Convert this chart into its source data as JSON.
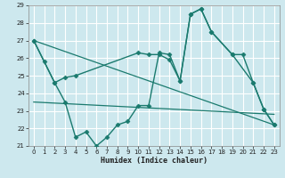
{
  "xlabel": "Humidex (Indice chaleur)",
  "bg_color": "#cde8ee",
  "grid_color": "#ffffff",
  "line_color": "#1a7a6e",
  "xlim": [
    -0.5,
    23.5
  ],
  "ylim": [
    21,
    29
  ],
  "yticks": [
    21,
    22,
    23,
    24,
    25,
    26,
    27,
    28,
    29
  ],
  "xticks": [
    0,
    1,
    2,
    3,
    4,
    5,
    6,
    7,
    8,
    9,
    10,
    11,
    12,
    13,
    14,
    15,
    16,
    17,
    18,
    19,
    20,
    21,
    22,
    23
  ],
  "series": [
    {
      "x": [
        0,
        1,
        2,
        3,
        4,
        5,
        6,
        7,
        8,
        9,
        10,
        11,
        12,
        13,
        14,
        15,
        16,
        17,
        19,
        20,
        21,
        22,
        23
      ],
      "y": [
        27,
        25.8,
        24.6,
        23.5,
        21.5,
        21.8,
        21.0,
        21.5,
        22.2,
        22.4,
        23.3,
        23.3,
        26.3,
        26.2,
        24.7,
        28.5,
        28.8,
        27.5,
        26.2,
        26.2,
        24.6,
        23.1,
        22.2
      ],
      "marker": "D",
      "markersize": 2.5,
      "linewidth": 1.0
    },
    {
      "x": [
        0,
        2,
        3,
        4,
        10,
        11,
        12,
        13,
        14,
        15,
        16,
        17,
        19,
        21,
        22,
        23
      ],
      "y": [
        27,
        24.6,
        24.9,
        25.0,
        26.3,
        26.2,
        26.2,
        25.9,
        24.7,
        28.5,
        28.8,
        27.5,
        26.2,
        24.6,
        23.1,
        22.2
      ],
      "marker": "D",
      "markersize": 2.5,
      "linewidth": 1.0
    },
    {
      "x": [
        0,
        23
      ],
      "y": [
        27,
        22.2
      ],
      "marker": null,
      "markersize": 0,
      "linewidth": 0.9
    },
    {
      "x": [
        0,
        23
      ],
      "y": [
        23.5,
        22.8
      ],
      "marker": null,
      "markersize": 0,
      "linewidth": 0.9
    }
  ]
}
